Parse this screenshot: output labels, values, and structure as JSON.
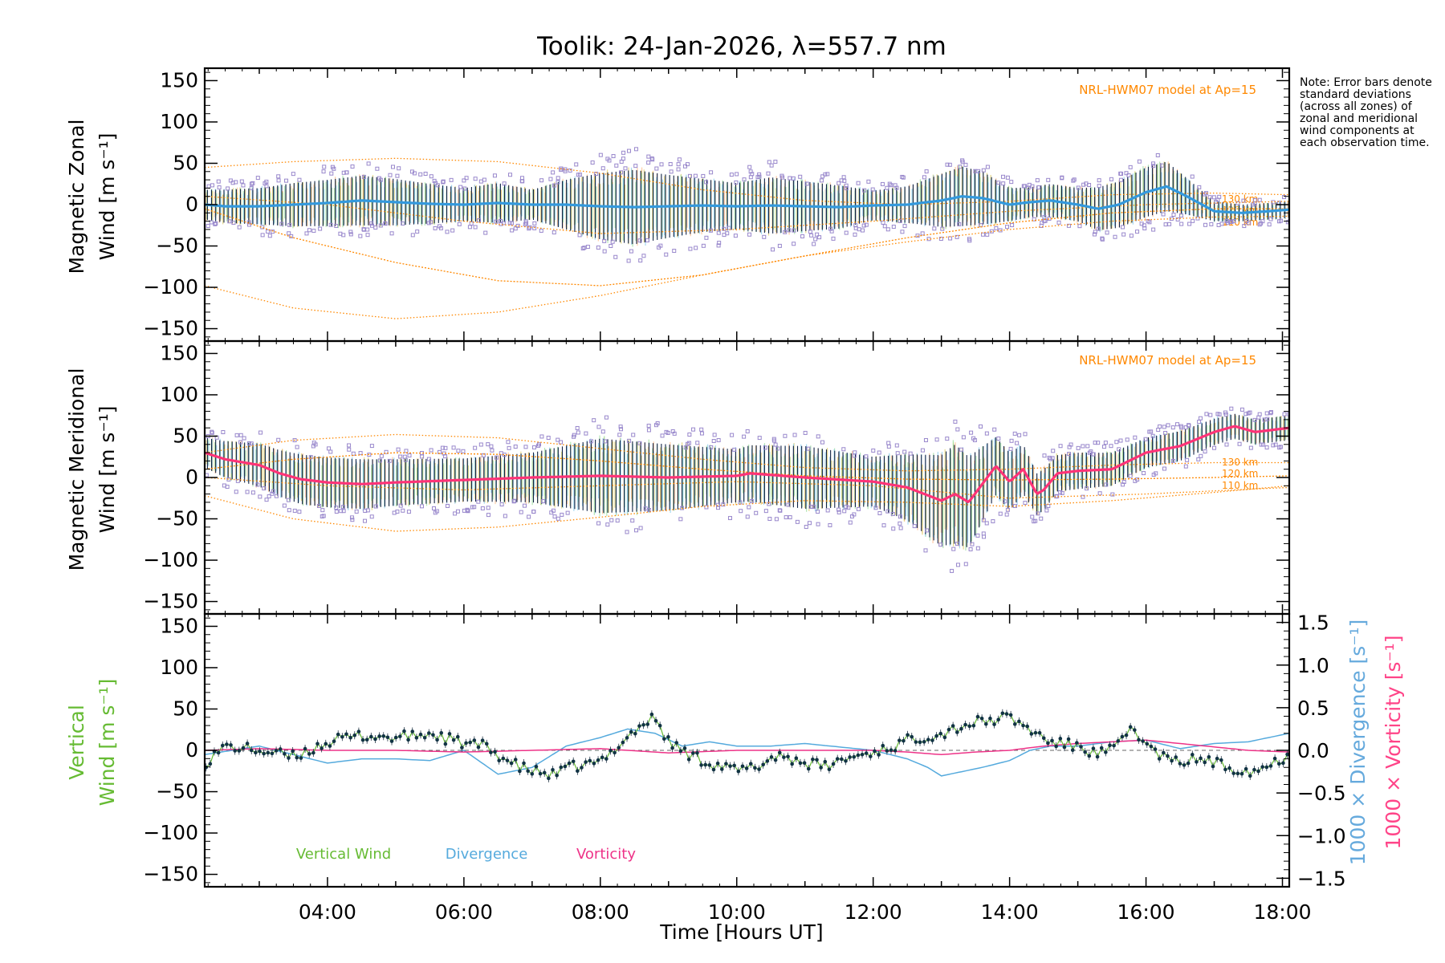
{
  "title": "Toolik: 24-Jan-2026, λ=557.7 nm",
  "note": "Note: Error bars denote standard deviations (across all zones) of zonal and meridional wind components at each observation time.",
  "x_axis": {
    "label": "Time [Hours UT]",
    "ticks": [
      {
        "t": 4,
        "label": "04:00"
      },
      {
        "t": 6,
        "label": "06:00"
      },
      {
        "t": 8,
        "label": "08:00"
      },
      {
        "t": 10,
        "label": "10:00"
      },
      {
        "t": 12,
        "label": "12:00"
      },
      {
        "t": 14,
        "label": "14:00"
      },
      {
        "t": 16,
        "label": "16:00"
      },
      {
        "t": 18,
        "label": "18:00"
      }
    ]
  },
  "colors": {
    "zonal": "#3399dd",
    "meridional": "#ff3377",
    "vertical": "#66bb33",
    "divergence": "#55aadd",
    "vorticity": "#ee3388",
    "model": "#ff8800",
    "scatter": "#9988cc",
    "errbar": "#112244",
    "div_label": "#66aadd",
    "vort_label": "#ff4488"
  },
  "panels": {
    "zonal": {
      "ylabel": [
        "Magnetic Zonal",
        "Wind [m s⁻¹]"
      ],
      "model_label": "NRL-HWM07 model at Ap=15",
      "model_heights": [
        "130 km",
        "120 km",
        "110 km"
      ],
      "y_ticks": [
        "150",
        "100",
        "50",
        "0",
        "−50",
        "−100",
        "−150"
      ]
    },
    "meridional": {
      "ylabel": [
        "Magnetic Meridional",
        "Wind [m s⁻¹]"
      ],
      "model_label": "NRL-HWM07 model at Ap=15",
      "model_heights": [
        "130 km",
        "120 km",
        "110 km"
      ],
      "y_ticks": [
        "150",
        "100",
        "50",
        "0",
        "−50",
        "−100",
        "−150"
      ]
    },
    "vertical": {
      "ylabel": [
        "Vertical",
        "Wind [m s⁻¹]"
      ],
      "right_ylabel_div": "1000 × Divergence [s⁻¹]",
      "right_ylabel_vort": "1000 × Vorticity [s⁻¹]",
      "y_ticks": [
        "150",
        "100",
        "50",
        "0",
        "−50",
        "−100",
        "−150"
      ],
      "right_ticks": [
        "1.5",
        "1.0",
        "0.5",
        "0.0",
        "−0.5",
        "−1.0",
        "−1.5"
      ],
      "legend": [
        "Vertical Wind",
        "Divergence",
        "Vorticity"
      ]
    }
  },
  "chart_data": [
    {
      "type": "line",
      "name": "Magnetic Zonal Wind",
      "xlim": [
        2.2,
        18.1
      ],
      "ylim": [
        -165,
        165
      ],
      "x_unit": "hours UT",
      "y_unit": "m s^-1",
      "observing_windows": [
        [
          2.2,
          3.3
        ],
        [
          3.3,
          5.9
        ],
        [
          6.0,
          7.7
        ],
        [
          7.6,
          9.3
        ],
        [
          9.3,
          10.5
        ],
        [
          10.5,
          12.1
        ],
        [
          12.1,
          14.0
        ],
        [
          14.0,
          15.2
        ],
        [
          15.2,
          16.8
        ],
        [
          16.8,
          18.1
        ]
      ],
      "mean_wind": {
        "x": [
          2.2,
          2.5,
          3.0,
          3.5,
          4.0,
          4.5,
          5.0,
          5.5,
          6.0,
          6.5,
          7.0,
          7.5,
          8.0,
          8.5,
          9.0,
          9.5,
          10.0,
          10.5,
          11.0,
          11.5,
          12.0,
          12.5,
          13.0,
          13.3,
          13.6,
          14.0,
          14.3,
          14.6,
          15.0,
          15.3,
          15.6,
          16.0,
          16.3,
          16.6,
          17.0,
          17.4,
          17.8,
          18.1
        ],
        "y": [
          0,
          -2,
          -2,
          0,
          2,
          5,
          3,
          1,
          0,
          2,
          0,
          0,
          -2,
          -3,
          -2,
          -1,
          -2,
          -1,
          -2,
          -3,
          -1,
          0,
          5,
          10,
          8,
          0,
          3,
          5,
          0,
          -5,
          0,
          15,
          22,
          10,
          -8,
          -10,
          -8,
          -6
        ],
        "std": [
          18,
          20,
          22,
          26,
          28,
          30,
          28,
          24,
          20,
          24,
          18,
          30,
          40,
          45,
          38,
          32,
          28,
          34,
          30,
          26,
          18,
          22,
          32,
          36,
          32,
          20,
          18,
          20,
          20,
          26,
          28,
          30,
          30,
          22,
          12,
          10,
          10,
          10
        ]
      },
      "model_winds": [
        {
          "height": "130 km",
          "x": [
            2.2,
            3.5,
            5.0,
            6.5,
            8.0,
            9.5,
            11.0,
            12.5,
            14.0,
            15.5,
            17.0,
            18.1
          ],
          "y": [
            45,
            52,
            56,
            52,
            38,
            18,
            5,
            0,
            4,
            12,
            14,
            12
          ]
        },
        {
          "height": "120 km",
          "x": [
            2.2,
            3.5,
            5.0,
            6.5,
            8.0,
            9.5,
            11.0,
            12.5,
            14.0,
            15.5,
            17.0,
            18.1
          ],
          "y": [
            -5,
            -40,
            -70,
            -92,
            -98,
            -85,
            -62,
            -40,
            -22,
            -10,
            -5,
            -5
          ]
        },
        {
          "height": "110 km",
          "x": [
            2.2,
            3.5,
            5.0,
            6.5,
            8.0,
            9.5,
            11.0,
            12.5,
            14.0,
            15.5,
            17.0,
            18.1
          ],
          "y": [
            -98,
            -125,
            -138,
            -130,
            -110,
            -85,
            -62,
            -45,
            -30,
            -20,
            -15,
            -14
          ]
        },
        {
          "height": "",
          "x": [
            2.2,
            4.0,
            6.0,
            8.0,
            10.0,
            12.0,
            14.0,
            16.0,
            18.1
          ],
          "y": [
            10,
            0,
            -20,
            -35,
            -30,
            -20,
            -8,
            0,
            4
          ]
        }
      ]
    },
    {
      "type": "line",
      "name": "Magnetic Meridional Wind",
      "xlim": [
        2.2,
        18.1
      ],
      "ylim": [
        -165,
        165
      ],
      "x_unit": "hours UT",
      "y_unit": "m s^-1",
      "mean_wind": {
        "x": [
          2.2,
          2.5,
          3.0,
          3.3,
          3.6,
          4.0,
          4.5,
          5.0,
          6.0,
          7.0,
          8.0,
          9.0,
          10.0,
          10.2,
          11.0,
          12.0,
          12.5,
          13.0,
          13.2,
          13.4,
          13.6,
          13.8,
          14.0,
          14.2,
          14.4,
          14.5,
          14.7,
          15.0,
          15.5,
          16.0,
          16.5,
          17.0,
          17.3,
          17.6,
          18.1
        ],
        "y": [
          30,
          22,
          15,
          5,
          -2,
          -6,
          -8,
          -6,
          -3,
          0,
          2,
          0,
          2,
          5,
          0,
          -5,
          -12,
          -28,
          -20,
          -30,
          -8,
          14,
          -5,
          10,
          -20,
          -15,
          5,
          8,
          10,
          30,
          38,
          55,
          62,
          55,
          60
        ],
        "std": [
          18,
          22,
          26,
          28,
          30,
          30,
          30,
          28,
          26,
          30,
          45,
          40,
          32,
          34,
          38,
          30,
          40,
          55,
          60,
          55,
          45,
          35,
          35,
          30,
          25,
          25,
          22,
          22,
          20,
          18,
          18,
          16,
          15,
          15,
          15
        ]
      },
      "model_winds": [
        {
          "height": "130 km",
          "x": [
            2.2,
            3.5,
            5.0,
            6.5,
            8.0,
            9.5,
            11.0,
            12.5,
            14.0,
            15.5,
            17.0,
            18.1
          ],
          "y": [
            30,
            45,
            52,
            48,
            35,
            22,
            12,
            8,
            10,
            15,
            18,
            18
          ]
        },
        {
          "height": "120 km",
          "x": [
            2.2,
            3.5,
            5.0,
            6.5,
            8.0,
            9.5,
            11.0,
            12.5,
            14.0,
            15.5,
            17.0,
            18.1
          ],
          "y": [
            10,
            22,
            30,
            28,
            20,
            10,
            2,
            -2,
            -3,
            -2,
            0,
            2
          ]
        },
        {
          "height": "110 km",
          "x": [
            2.2,
            3.5,
            5.0,
            6.5,
            8.0,
            9.5,
            11.0,
            12.5,
            14.0,
            15.5,
            17.0,
            18.1
          ],
          "y": [
            -22,
            -50,
            -65,
            -60,
            -48,
            -35,
            -28,
            -30,
            -35,
            -28,
            -18,
            -10
          ]
        },
        {
          "height": "",
          "x": [
            2.2,
            4.0,
            6.0,
            8.0,
            10.0,
            12.0,
            14.0,
            16.0,
            18.1
          ],
          "y": [
            0,
            -10,
            -15,
            -10,
            -5,
            -10,
            -25,
            -20,
            -12
          ]
        }
      ]
    },
    {
      "type": "line",
      "name": "Vertical Wind, Divergence, Vorticity",
      "xlim": [
        2.2,
        18.1
      ],
      "ylim": [
        -165,
        165
      ],
      "y2lim": [
        -1.6,
        1.6
      ],
      "x_unit": "hours UT",
      "series": [
        {
          "name": "Vertical Wind",
          "axis": "left",
          "x": [
            2.2,
            2.5,
            3.0,
            3.5,
            4.0,
            4.5,
            5.0,
            5.5,
            6.0,
            6.3,
            6.5,
            6.8,
            7.0,
            7.3,
            7.6,
            8.0,
            8.3,
            8.6,
            8.8,
            9.0,
            9.3,
            9.6,
            10.0,
            10.3,
            10.6,
            11.0,
            11.3,
            11.6,
            12.0,
            12.3,
            12.6,
            13.0,
            13.3,
            13.6,
            14.0,
            14.3,
            14.6,
            15.0,
            15.3,
            15.6,
            15.8,
            16.0,
            16.4,
            16.8,
            17.2,
            17.6,
            18.0,
            18.1
          ],
          "y": [
            -15,
            5,
            0,
            -8,
            10,
            18,
            15,
            20,
            8,
            5,
            -5,
            -20,
            -25,
            -30,
            -20,
            -15,
            10,
            30,
            40,
            10,
            -5,
            -15,
            -25,
            -20,
            -5,
            -15,
            -20,
            -10,
            -2,
            5,
            15,
            20,
            30,
            35,
            40,
            25,
            10,
            5,
            -5,
            5,
            30,
            5,
            -15,
            -10,
            -20,
            -25,
            -10,
            0
          ]
        },
        {
          "name": "Divergence",
          "axis": "right",
          "x": [
            2.2,
            3.0,
            3.5,
            4.0,
            4.5,
            5.0,
            5.5,
            6.0,
            6.5,
            7.0,
            7.5,
            8.0,
            8.4,
            8.8,
            9.2,
            9.6,
            10.0,
            10.5,
            11.0,
            11.5,
            12.0,
            12.5,
            12.8,
            13.0,
            13.3,
            13.6,
            14.0,
            14.3,
            14.6,
            15.0,
            15.5,
            16.0,
            16.5,
            17.0,
            17.5,
            18.1
          ],
          "y": [
            -0.05,
            0.05,
            -0.05,
            -0.15,
            -0.1,
            -0.1,
            -0.12,
            0.0,
            -0.28,
            -0.2,
            0.05,
            0.15,
            0.25,
            0.2,
            0.05,
            0.1,
            0.05,
            0.05,
            0.08,
            0.04,
            0.0,
            -0.1,
            -0.2,
            -0.3,
            -0.25,
            -0.2,
            -0.12,
            0.0,
            0.05,
            0.05,
            0.1,
            0.12,
            0.02,
            0.08,
            0.1,
            0.2
          ]
        },
        {
          "name": "Vorticity",
          "axis": "right",
          "x": [
            2.2,
            3.0,
            4.0,
            5.0,
            6.0,
            7.0,
            8.0,
            9.0,
            10.0,
            11.0,
            12.0,
            12.5,
            13.0,
            13.5,
            14.0,
            14.5,
            15.0,
            15.5,
            16.0,
            16.5,
            17.0,
            17.5,
            18.1
          ],
          "y": [
            0.0,
            0.02,
            0.0,
            0.0,
            -0.02,
            0.0,
            0.02,
            -0.03,
            0.0,
            0.0,
            0.0,
            -0.02,
            -0.05,
            -0.02,
            0.0,
            0.05,
            0.08,
            0.1,
            0.12,
            0.08,
            0.04,
            0.0,
            -0.02
          ]
        }
      ]
    }
  ]
}
